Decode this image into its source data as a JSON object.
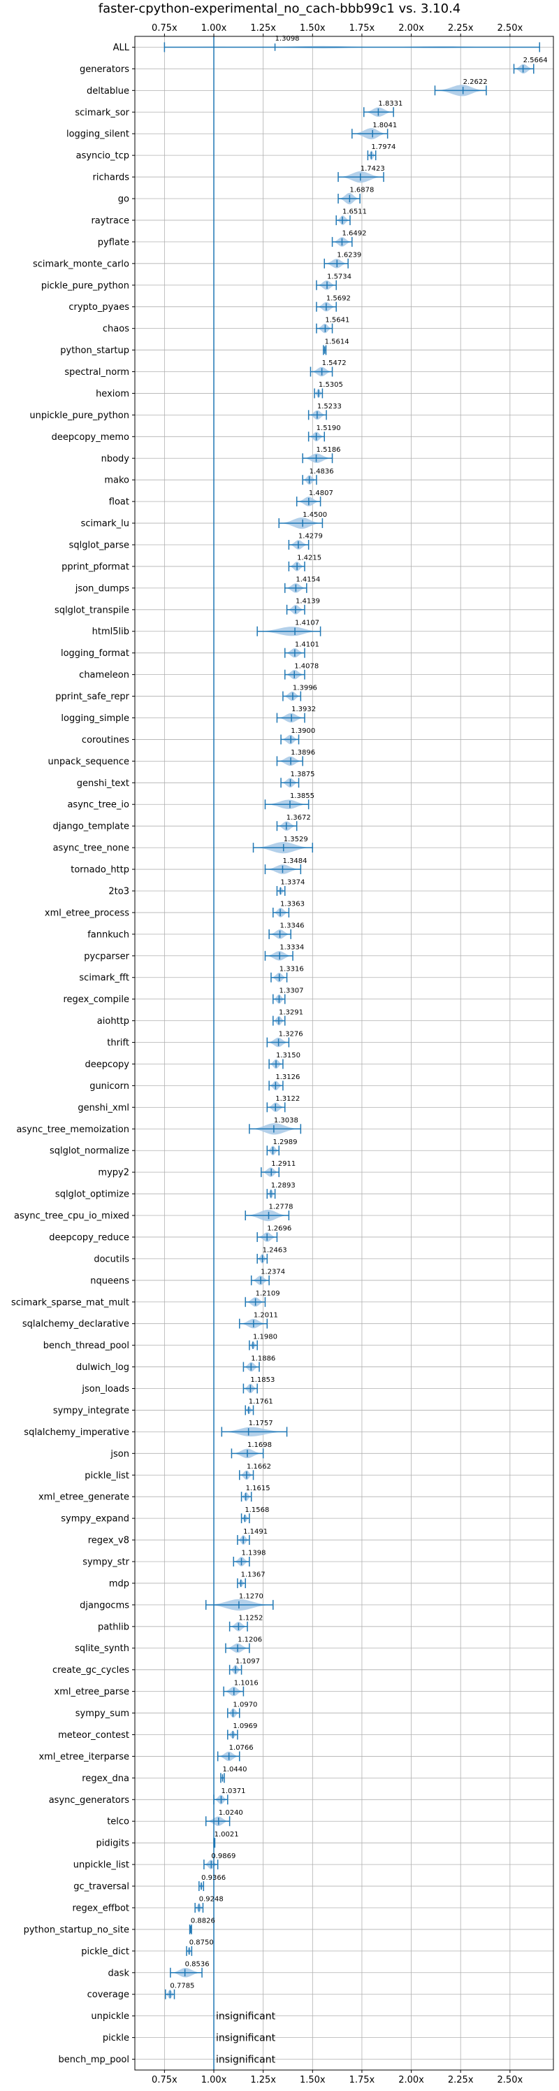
{
  "chart_data": {
    "type": "violin",
    "title": "faster-cpython-experimental_no_cach-bbb99c1 vs. 3.10.4",
    "xlim": [
      0.6,
      2.72
    ],
    "x_ticks": [
      0.75,
      1.0,
      1.25,
      1.5,
      1.75,
      2.0,
      2.25,
      2.5
    ],
    "x_tick_labels": [
      "0.75x",
      "1.00x",
      "1.25x",
      "1.50x",
      "1.75x",
      "2.00x",
      "2.25x",
      "2.50x"
    ],
    "reference_line": 1.0,
    "grid": true,
    "colors": {
      "violin": "#a6c8e6",
      "line": "#1f77b4"
    },
    "benchmarks": [
      {
        "name": "ALL",
        "value": 1.3098,
        "label": "1.3098",
        "min": 0.75,
        "max": 2.65,
        "spread": 0.13
      },
      {
        "name": "generators",
        "value": 2.5664,
        "label": "2.5664",
        "min": 2.52,
        "max": 2.62,
        "spread": 0.5
      },
      {
        "name": "deltablue",
        "value": 2.2622,
        "label": "2.2622",
        "min": 2.12,
        "max": 2.38,
        "spread": 0.6
      },
      {
        "name": "scimark_sor",
        "value": 1.8331,
        "label": "1.8331",
        "min": 1.76,
        "max": 1.91,
        "spread": 0.5
      },
      {
        "name": "logging_silent",
        "value": 1.8041,
        "label": "1.8041",
        "min": 1.7,
        "max": 1.88,
        "spread": 0.6
      },
      {
        "name": "asyncio_tcp",
        "value": 1.7974,
        "label": "1.7974",
        "min": 1.78,
        "max": 1.82,
        "spread": 0.5
      },
      {
        "name": "richards",
        "value": 1.7423,
        "label": "1.7423",
        "min": 1.63,
        "max": 1.86,
        "spread": 0.6
      },
      {
        "name": "go",
        "value": 1.6878,
        "label": "1.6878",
        "min": 1.63,
        "max": 1.74,
        "spread": 0.6
      },
      {
        "name": "raytrace",
        "value": 1.6511,
        "label": "1.6511",
        "min": 1.62,
        "max": 1.69,
        "spread": 0.5
      },
      {
        "name": "pyflate",
        "value": 1.6492,
        "label": "1.6492",
        "min": 1.6,
        "max": 1.7,
        "spread": 0.5
      },
      {
        "name": "scimark_monte_carlo",
        "value": 1.6239,
        "label": "1.6239",
        "min": 1.56,
        "max": 1.68,
        "spread": 0.5
      },
      {
        "name": "pickle_pure_python",
        "value": 1.5734,
        "label": "1.5734",
        "min": 1.52,
        "max": 1.62,
        "spread": 0.5
      },
      {
        "name": "crypto_pyaes",
        "value": 1.5692,
        "label": "1.5692",
        "min": 1.52,
        "max": 1.62,
        "spread": 0.5
      },
      {
        "name": "chaos",
        "value": 1.5641,
        "label": "1.5641",
        "min": 1.52,
        "max": 1.6,
        "spread": 0.5
      },
      {
        "name": "python_startup",
        "value": 1.5614,
        "label": "1.5614",
        "min": 1.555,
        "max": 1.568,
        "spread": 0.3
      },
      {
        "name": "spectral_norm",
        "value": 1.5472,
        "label": "1.5472",
        "min": 1.49,
        "max": 1.6,
        "spread": 0.5
      },
      {
        "name": "hexiom",
        "value": 1.5305,
        "label": "1.5305",
        "min": 1.51,
        "max": 1.55,
        "spread": 0.5
      },
      {
        "name": "unpickle_pure_python",
        "value": 1.5233,
        "label": "1.5233",
        "min": 1.48,
        "max": 1.57,
        "spread": 0.5
      },
      {
        "name": "deepcopy_memo",
        "value": 1.519,
        "label": "1.5190",
        "min": 1.48,
        "max": 1.56,
        "spread": 0.5
      },
      {
        "name": "nbody",
        "value": 1.5186,
        "label": "1.5186",
        "min": 1.45,
        "max": 1.6,
        "spread": 0.5
      },
      {
        "name": "mako",
        "value": 1.4836,
        "label": "1.4836",
        "min": 1.45,
        "max": 1.52,
        "spread": 0.5
      },
      {
        "name": "float",
        "value": 1.4807,
        "label": "1.4807",
        "min": 1.42,
        "max": 1.54,
        "spread": 0.5
      },
      {
        "name": "scimark_lu",
        "value": 1.45,
        "label": "1.4500",
        "min": 1.33,
        "max": 1.55,
        "spread": 0.6
      },
      {
        "name": "sqlglot_parse",
        "value": 1.4279,
        "label": "1.4279",
        "min": 1.38,
        "max": 1.48,
        "spread": 0.5
      },
      {
        "name": "pprint_pformat",
        "value": 1.4215,
        "label": "1.4215",
        "min": 1.38,
        "max": 1.46,
        "spread": 0.5
      },
      {
        "name": "json_dumps",
        "value": 1.4154,
        "label": "1.4154",
        "min": 1.36,
        "max": 1.47,
        "spread": 0.5
      },
      {
        "name": "sqlglot_transpile",
        "value": 1.4139,
        "label": "1.4139",
        "min": 1.37,
        "max": 1.46,
        "spread": 0.5
      },
      {
        "name": "html5lib",
        "value": 1.4107,
        "label": "1.4107",
        "min": 1.22,
        "max": 1.54,
        "spread": 0.5
      },
      {
        "name": "logging_format",
        "value": 1.4101,
        "label": "1.4101",
        "min": 1.36,
        "max": 1.46,
        "spread": 0.5
      },
      {
        "name": "chameleon",
        "value": 1.4078,
        "label": "1.4078",
        "min": 1.36,
        "max": 1.46,
        "spread": 0.5
      },
      {
        "name": "pprint_safe_repr",
        "value": 1.3996,
        "label": "1.3996",
        "min": 1.35,
        "max": 1.44,
        "spread": 0.5
      },
      {
        "name": "logging_simple",
        "value": 1.3932,
        "label": "1.3932",
        "min": 1.32,
        "max": 1.46,
        "spread": 0.5
      },
      {
        "name": "coroutines",
        "value": 1.39,
        "label": "1.3900",
        "min": 1.34,
        "max": 1.43,
        "spread": 0.5
      },
      {
        "name": "unpack_sequence",
        "value": 1.3896,
        "label": "1.3896",
        "min": 1.32,
        "max": 1.45,
        "spread": 0.5
      },
      {
        "name": "genshi_text",
        "value": 1.3875,
        "label": "1.3875",
        "min": 1.34,
        "max": 1.43,
        "spread": 0.5
      },
      {
        "name": "async_tree_io",
        "value": 1.3855,
        "label": "1.3855",
        "min": 1.26,
        "max": 1.48,
        "spread": 0.5
      },
      {
        "name": "django_template",
        "value": 1.3672,
        "label": "1.3672",
        "min": 1.32,
        "max": 1.42,
        "spread": 0.5
      },
      {
        "name": "async_tree_none",
        "value": 1.3529,
        "label": "1.3529",
        "min": 1.2,
        "max": 1.5,
        "spread": 0.6
      },
      {
        "name": "tornado_http",
        "value": 1.3484,
        "label": "1.3484",
        "min": 1.26,
        "max": 1.44,
        "spread": 0.5
      },
      {
        "name": "2to3",
        "value": 1.3374,
        "label": "1.3374",
        "min": 1.32,
        "max": 1.36,
        "spread": 0.4
      },
      {
        "name": "xml_etree_process",
        "value": 1.3363,
        "label": "1.3363",
        "min": 1.3,
        "max": 1.38,
        "spread": 0.5
      },
      {
        "name": "fannkuch",
        "value": 1.3346,
        "label": "1.3346",
        "min": 1.28,
        "max": 1.39,
        "spread": 0.5
      },
      {
        "name": "pycparser",
        "value": 1.3334,
        "label": "1.3334",
        "min": 1.26,
        "max": 1.4,
        "spread": 0.5
      },
      {
        "name": "scimark_fft",
        "value": 1.3316,
        "label": "1.3316",
        "min": 1.29,
        "max": 1.37,
        "spread": 0.5
      },
      {
        "name": "regex_compile",
        "value": 1.3307,
        "label": "1.3307",
        "min": 1.3,
        "max": 1.36,
        "spread": 0.5
      },
      {
        "name": "aiohttp",
        "value": 1.3291,
        "label": "1.3291",
        "min": 1.3,
        "max": 1.36,
        "spread": 0.5
      },
      {
        "name": "thrift",
        "value": 1.3276,
        "label": "1.3276",
        "min": 1.27,
        "max": 1.38,
        "spread": 0.5
      },
      {
        "name": "deepcopy",
        "value": 1.315,
        "label": "1.3150",
        "min": 1.28,
        "max": 1.35,
        "spread": 0.5
      },
      {
        "name": "gunicorn",
        "value": 1.3126,
        "label": "1.3126",
        "min": 1.28,
        "max": 1.35,
        "spread": 0.5
      },
      {
        "name": "genshi_xml",
        "value": 1.3122,
        "label": "1.3122",
        "min": 1.27,
        "max": 1.36,
        "spread": 0.5
      },
      {
        "name": "async_tree_memoization",
        "value": 1.3038,
        "label": "1.3038",
        "min": 1.18,
        "max": 1.44,
        "spread": 0.6
      },
      {
        "name": "sqlglot_normalize",
        "value": 1.2989,
        "label": "1.2989",
        "min": 1.27,
        "max": 1.33,
        "spread": 0.5
      },
      {
        "name": "mypy2",
        "value": 1.2911,
        "label": "1.2911",
        "min": 1.24,
        "max": 1.33,
        "spread": 0.5
      },
      {
        "name": "sqlglot_optimize",
        "value": 1.2893,
        "label": "1.2893",
        "min": 1.27,
        "max": 1.31,
        "spread": 0.5
      },
      {
        "name": "async_tree_cpu_io_mixed",
        "value": 1.2778,
        "label": "1.2778",
        "min": 1.16,
        "max": 1.38,
        "spread": 0.6
      },
      {
        "name": "deepcopy_reduce",
        "value": 1.2696,
        "label": "1.2696",
        "min": 1.22,
        "max": 1.32,
        "spread": 0.5
      },
      {
        "name": "docutils",
        "value": 1.2463,
        "label": "1.2463",
        "min": 1.22,
        "max": 1.27,
        "spread": 0.5
      },
      {
        "name": "nqueens",
        "value": 1.2374,
        "label": "1.2374",
        "min": 1.19,
        "max": 1.28,
        "spread": 0.5
      },
      {
        "name": "scimark_sparse_mat_mult",
        "value": 1.2109,
        "label": "1.2109",
        "min": 1.16,
        "max": 1.26,
        "spread": 0.5
      },
      {
        "name": "sqlalchemy_declarative",
        "value": 1.2011,
        "label": "1.2011",
        "min": 1.13,
        "max": 1.27,
        "spread": 0.5
      },
      {
        "name": "bench_thread_pool",
        "value": 1.198,
        "label": "1.1980",
        "min": 1.18,
        "max": 1.22,
        "spread": 0.4
      },
      {
        "name": "dulwich_log",
        "value": 1.1886,
        "label": "1.1886",
        "min": 1.15,
        "max": 1.23,
        "spread": 0.5
      },
      {
        "name": "json_loads",
        "value": 1.1853,
        "label": "1.1853",
        "min": 1.15,
        "max": 1.22,
        "spread": 0.5
      },
      {
        "name": "sympy_integrate",
        "value": 1.1761,
        "label": "1.1761",
        "min": 1.16,
        "max": 1.2,
        "spread": 0.4
      },
      {
        "name": "sqlalchemy_imperative",
        "value": 1.1757,
        "label": "1.1757",
        "min": 1.04,
        "max": 1.37,
        "spread": 0.5
      },
      {
        "name": "json",
        "value": 1.1698,
        "label": "1.1698",
        "min": 1.09,
        "max": 1.25,
        "spread": 0.5
      },
      {
        "name": "pickle_list",
        "value": 1.1662,
        "label": "1.1662",
        "min": 1.13,
        "max": 1.2,
        "spread": 0.5
      },
      {
        "name": "xml_etree_generate",
        "value": 1.1615,
        "label": "1.1615",
        "min": 1.14,
        "max": 1.19,
        "spread": 0.5
      },
      {
        "name": "sympy_expand",
        "value": 1.1568,
        "label": "1.1568",
        "min": 1.14,
        "max": 1.18,
        "spread": 0.4
      },
      {
        "name": "regex_v8",
        "value": 1.1491,
        "label": "1.1491",
        "min": 1.12,
        "max": 1.18,
        "spread": 0.5
      },
      {
        "name": "sympy_str",
        "value": 1.1398,
        "label": "1.1398",
        "min": 1.1,
        "max": 1.18,
        "spread": 0.5
      },
      {
        "name": "mdp",
        "value": 1.1367,
        "label": "1.1367",
        "min": 1.12,
        "max": 1.16,
        "spread": 0.4
      },
      {
        "name": "djangocms",
        "value": 1.127,
        "label": "1.1270",
        "min": 0.96,
        "max": 1.3,
        "spread": 0.6
      },
      {
        "name": "pathlib",
        "value": 1.1252,
        "label": "1.1252",
        "min": 1.08,
        "max": 1.17,
        "spread": 0.5
      },
      {
        "name": "sqlite_synth",
        "value": 1.1206,
        "label": "1.1206",
        "min": 1.06,
        "max": 1.18,
        "spread": 0.5
      },
      {
        "name": "create_gc_cycles",
        "value": 1.1097,
        "label": "1.1097",
        "min": 1.08,
        "max": 1.14,
        "spread": 0.5
      },
      {
        "name": "xml_etree_parse",
        "value": 1.1016,
        "label": "1.1016",
        "min": 1.05,
        "max": 1.15,
        "spread": 0.5
      },
      {
        "name": "sympy_sum",
        "value": 1.097,
        "label": "1.0970",
        "min": 1.07,
        "max": 1.13,
        "spread": 0.5
      },
      {
        "name": "meteor_contest",
        "value": 1.0969,
        "label": "1.0969",
        "min": 1.07,
        "max": 1.12,
        "spread": 0.4
      },
      {
        "name": "xml_etree_iterparse",
        "value": 1.0766,
        "label": "1.0766",
        "min": 1.02,
        "max": 1.13,
        "spread": 0.5
      },
      {
        "name": "regex_dna",
        "value": 1.044,
        "label": "1.0440",
        "min": 1.035,
        "max": 1.053,
        "spread": 0.3
      },
      {
        "name": "async_generators",
        "value": 1.0371,
        "label": "1.0371",
        "min": 1.0,
        "max": 1.07,
        "spread": 0.5
      },
      {
        "name": "telco",
        "value": 1.024,
        "label": "1.0240",
        "min": 0.96,
        "max": 1.08,
        "spread": 0.5
      },
      {
        "name": "pidigits",
        "value": 1.0021,
        "label": "1.0021",
        "min": 1.0,
        "max": 1.005,
        "spread": 0.2
      },
      {
        "name": "unpickle_list",
        "value": 0.9869,
        "label": "0.9869",
        "min": 0.95,
        "max": 1.02,
        "spread": 0.5
      },
      {
        "name": "gc_traversal",
        "value": 0.9366,
        "label": "0.9366",
        "min": 0.925,
        "max": 0.948,
        "spread": 0.4
      },
      {
        "name": "regex_effbot",
        "value": 0.9248,
        "label": "0.9248",
        "min": 0.905,
        "max": 0.945,
        "spread": 0.5
      },
      {
        "name": "python_startup_no_site",
        "value": 0.8826,
        "label": "0.8826",
        "min": 0.878,
        "max": 0.887,
        "spread": 0.3
      },
      {
        "name": "pickle_dict",
        "value": 0.875,
        "label": "0.8750",
        "min": 0.862,
        "max": 0.888,
        "spread": 0.4
      },
      {
        "name": "dask",
        "value": 0.8536,
        "label": "0.8536",
        "min": 0.78,
        "max": 0.94,
        "spread": 0.5
      },
      {
        "name": "coverage",
        "value": 0.7785,
        "label": "0.7785",
        "min": 0.755,
        "max": 0.8,
        "spread": 0.5
      },
      {
        "name": "unpickle",
        "value": null,
        "label": "insignificant"
      },
      {
        "name": "pickle",
        "value": null,
        "label": "insignificant"
      },
      {
        "name": "bench_mp_pool",
        "value": null,
        "label": "insignificant"
      }
    ]
  }
}
